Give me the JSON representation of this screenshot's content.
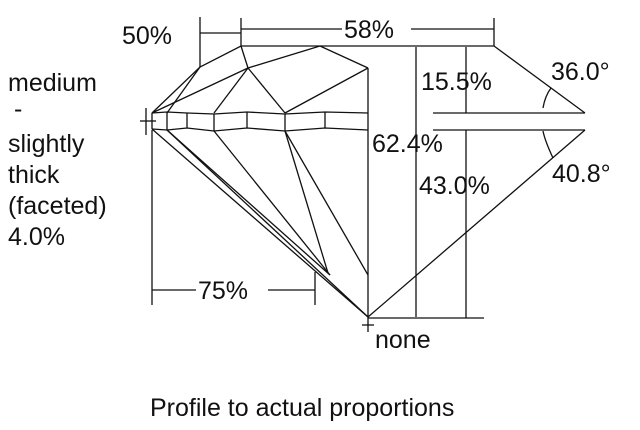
{
  "labels": {
    "crown_height": "50%",
    "table": "58%",
    "crown_percent": "15.5%",
    "crown_angle": "36.0°",
    "total_depth": "62.4%",
    "pavilion_depth": "43.0%",
    "pavilion_angle": "40.8°",
    "lower_half": "75%",
    "culet": "none",
    "girdle_lines": [
      "medium",
      "-",
      "slightly",
      "thick",
      "(faceted)",
      "4.0%"
    ]
  },
  "caption": "Profile to actual proportions",
  "colors": {
    "line": "#111111",
    "background": "#ffffff"
  }
}
